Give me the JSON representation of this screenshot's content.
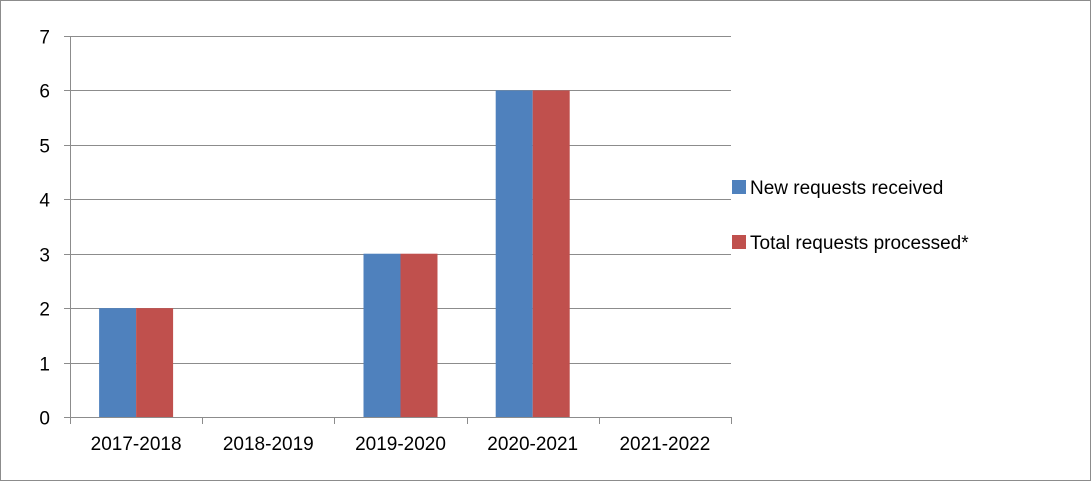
{
  "chart_data": {
    "type": "bar",
    "categories": [
      "2017-2018",
      "2018-2019",
      "2019-2020",
      "2020-2021",
      "2021-2022"
    ],
    "series": [
      {
        "name": "New requests received",
        "values": [
          2,
          0,
          3,
          6,
          0
        ],
        "color": "#4f81bd"
      },
      {
        "name": "Total requests processed*",
        "values": [
          2,
          0,
          3,
          6,
          0
        ],
        "color": "#c0504d"
      }
    ],
    "ylim": [
      0,
      7
    ],
    "yticks": [
      0,
      1,
      2,
      3,
      4,
      5,
      6,
      7
    ],
    "grid": true,
    "legend_position": "right",
    "title": "",
    "xlabel": "",
    "ylabel": ""
  }
}
